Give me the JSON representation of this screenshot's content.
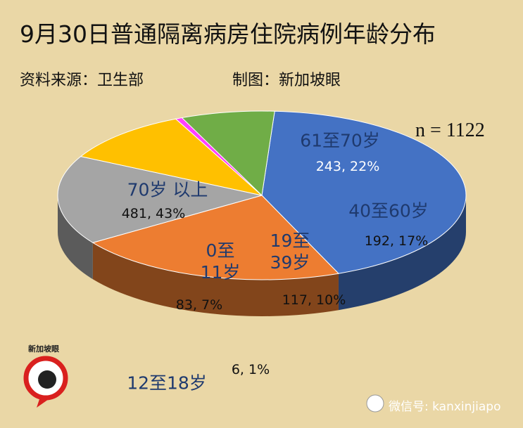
{
  "chart_data": {
    "type": "pie",
    "title": "9月30日普通隔离病房住院病例年龄分布",
    "source": "资料来源：卫生部",
    "credit": "制图：新加坡眼",
    "annotation": "n = 1122",
    "categories": [
      "70岁 以上",
      "61至70岁",
      "40至60岁",
      "19至\n39岁",
      "12至18岁",
      "0至\n11岁"
    ],
    "values": [
      481,
      243,
      192,
      117,
      6,
      83
    ],
    "value_labels": [
      "481, 43%",
      "243, 22%",
      "192, 17%",
      "117, 10%",
      "6, 1%",
      "83, 7%"
    ],
    "colors": [
      "#4472c4",
      "#ed7d31",
      "#a5a5a5",
      "#ffc000",
      "#ff40ff",
      "#70ad47"
    ]
  },
  "logo": "新加坡眼",
  "watermark": "微信号: kanxinjiapo"
}
